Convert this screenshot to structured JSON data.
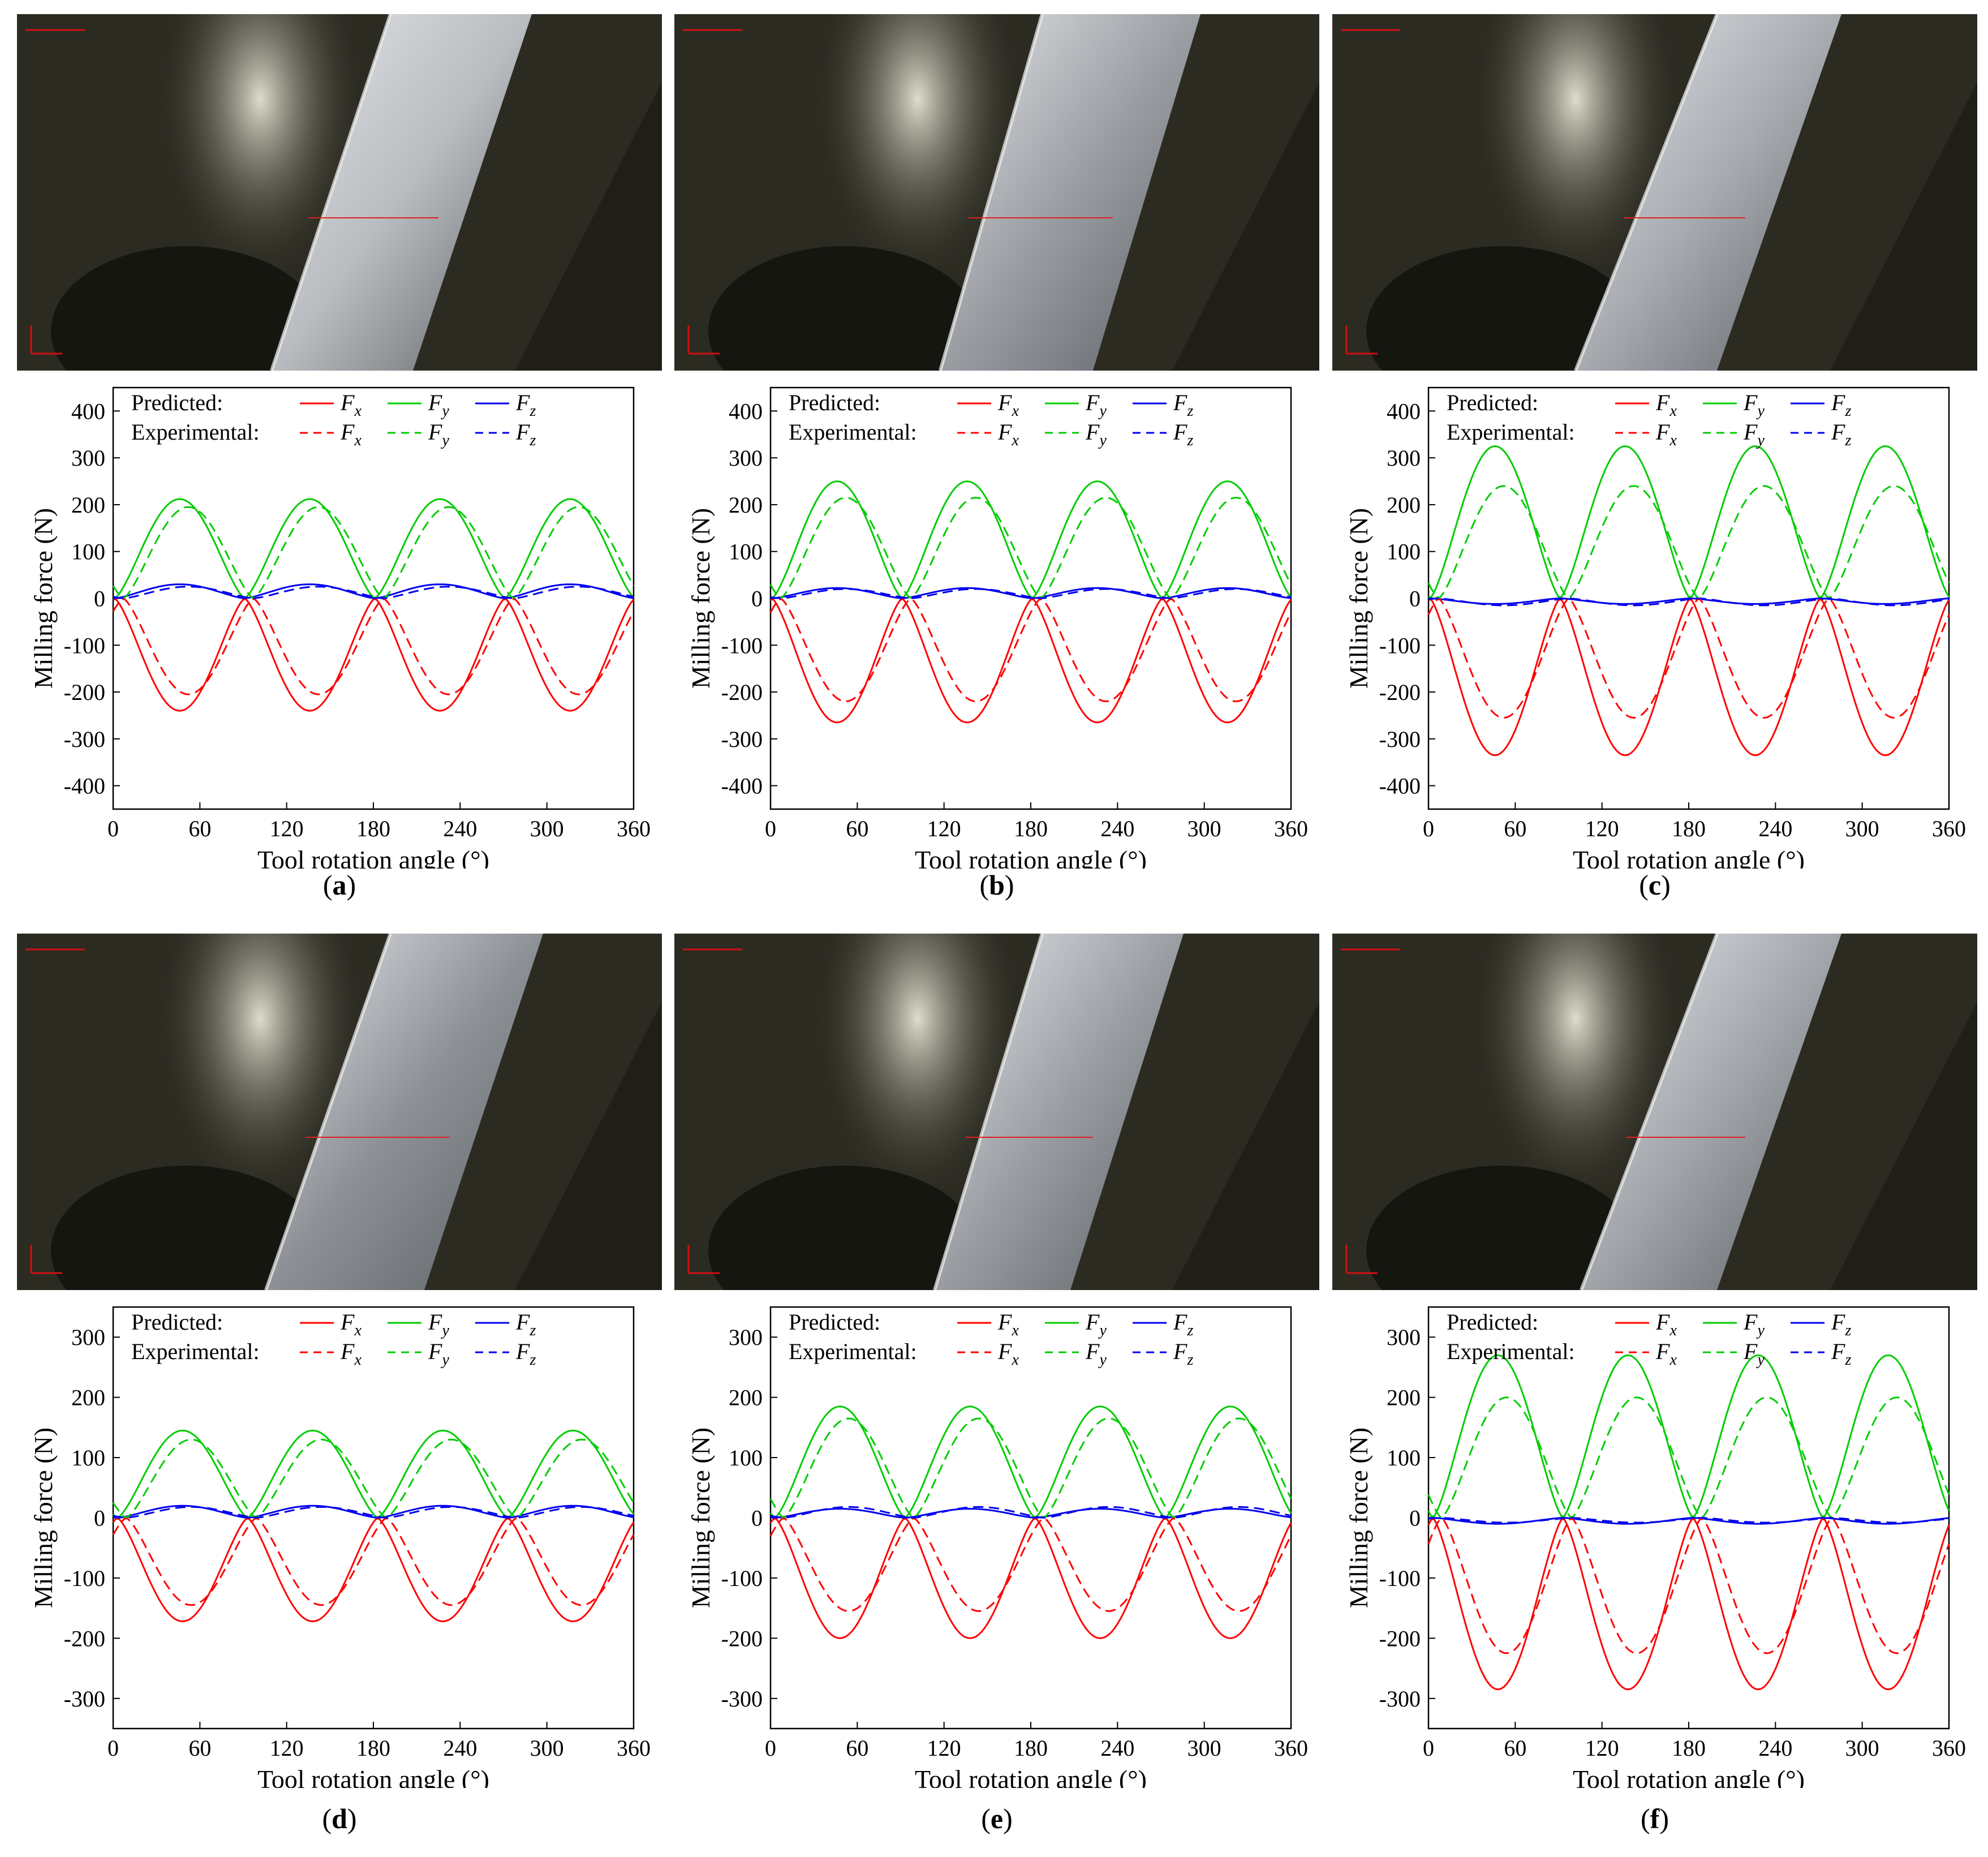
{
  "legend": {
    "predicted_label": "Predicted:",
    "experimental_label": "Experimental:",
    "symbol": "F",
    "subscripts": [
      "x",
      "y",
      "z"
    ]
  },
  "axis_labels": {
    "xlabel": "Tool rotation angle (°)",
    "ylabel": "Milling force (N)"
  },
  "colors": {
    "Fx": "#ff0000",
    "Fy": "#00cc00",
    "Fz": "#0000ee"
  },
  "panels": [
    {
      "letter": "a",
      "caption_open": "(",
      "caption_close": ")"
    },
    {
      "letter": "b",
      "caption_open": "(",
      "caption_close": ")"
    },
    {
      "letter": "c",
      "caption_open": "(",
      "caption_close": ")"
    },
    {
      "letter": "d",
      "caption_open": "(",
      "caption_close": ")"
    },
    {
      "letter": "e",
      "caption_open": "(",
      "caption_close": ")"
    },
    {
      "letter": "f",
      "caption_open": "(",
      "caption_close": ")"
    }
  ],
  "chart_data": [
    {
      "panel": "a",
      "type": "line",
      "xlim": [
        0,
        360
      ],
      "ylim": [
        -450,
        450
      ],
      "xticks": [
        0,
        60,
        120,
        180,
        240,
        300,
        360
      ],
      "yticks": [
        -400,
        -300,
        -200,
        -100,
        0,
        100,
        200,
        300,
        400
      ],
      "xlabel": "Tool rotation angle (°)",
      "ylabel": "Milling force (N)",
      "series": [
        {
          "name": "Fx",
          "kind": "predicted",
          "peak": -240,
          "peak_angle": 46
        },
        {
          "name": "Fy",
          "kind": "predicted",
          "peak": 212,
          "peak_angle": 46
        },
        {
          "name": "Fz",
          "kind": "predicted",
          "peak": 30,
          "peak_angle": 46
        },
        {
          "name": "Fx",
          "kind": "experimental",
          "peak": -205,
          "peak_angle": 52
        },
        {
          "name": "Fy",
          "kind": "experimental",
          "peak": 195,
          "peak_angle": 52
        },
        {
          "name": "Fz",
          "kind": "experimental",
          "peak": 25,
          "peak_angle": 52
        }
      ]
    },
    {
      "panel": "b",
      "type": "line",
      "xlim": [
        0,
        360
      ],
      "ylim": [
        -450,
        450
      ],
      "xticks": [
        0,
        60,
        120,
        180,
        240,
        300,
        360
      ],
      "yticks": [
        -400,
        -300,
        -200,
        -100,
        0,
        100,
        200,
        300,
        400
      ],
      "xlabel": "Tool rotation angle (°)",
      "ylabel": "Milling force (N)",
      "series": [
        {
          "name": "Fx",
          "kind": "predicted",
          "peak": -265,
          "peak_angle": 46
        },
        {
          "name": "Fy",
          "kind": "predicted",
          "peak": 250,
          "peak_angle": 46
        },
        {
          "name": "Fz",
          "kind": "predicted",
          "peak": 22,
          "peak_angle": 46
        },
        {
          "name": "Fx",
          "kind": "experimental",
          "peak": -220,
          "peak_angle": 52
        },
        {
          "name": "Fy",
          "kind": "experimental",
          "peak": 215,
          "peak_angle": 52
        },
        {
          "name": "Fz",
          "kind": "experimental",
          "peak": 20,
          "peak_angle": 52
        }
      ]
    },
    {
      "panel": "c",
      "type": "line",
      "xlim": [
        0,
        360
      ],
      "ylim": [
        -450,
        450
      ],
      "xticks": [
        0,
        60,
        120,
        180,
        240,
        300,
        360
      ],
      "yticks": [
        -400,
        -300,
        -200,
        -100,
        0,
        100,
        200,
        300,
        400
      ],
      "xlabel": "Tool rotation angle (°)",
      "ylabel": "Milling force (N)",
      "series": [
        {
          "name": "Fx",
          "kind": "predicted",
          "peak": -335,
          "peak_angle": 46
        },
        {
          "name": "Fy",
          "kind": "predicted",
          "peak": 325,
          "peak_angle": 46
        },
        {
          "name": "Fz",
          "kind": "predicted",
          "peak": -12,
          "peak_angle": 46
        },
        {
          "name": "Fx",
          "kind": "experimental",
          "peak": -255,
          "peak_angle": 52
        },
        {
          "name": "Fy",
          "kind": "experimental",
          "peak": 240,
          "peak_angle": 52
        },
        {
          "name": "Fz",
          "kind": "experimental",
          "peak": -15,
          "peak_angle": 52
        }
      ]
    },
    {
      "panel": "d",
      "type": "line",
      "xlim": [
        0,
        360
      ],
      "ylim": [
        -350,
        350
      ],
      "xticks": [
        0,
        60,
        120,
        180,
        240,
        300,
        360
      ],
      "yticks": [
        -300,
        -200,
        -100,
        0,
        100,
        200,
        300
      ],
      "xlabel": "Tool rotation angle (°)",
      "ylabel": "Milling force (N)",
      "series": [
        {
          "name": "Fx",
          "kind": "predicted",
          "peak": -172,
          "peak_angle": 48
        },
        {
          "name": "Fy",
          "kind": "predicted",
          "peak": 145,
          "peak_angle": 48
        },
        {
          "name": "Fz",
          "kind": "predicted",
          "peak": 20,
          "peak_angle": 48
        },
        {
          "name": "Fx",
          "kind": "experimental",
          "peak": -145,
          "peak_angle": 54
        },
        {
          "name": "Fy",
          "kind": "experimental",
          "peak": 130,
          "peak_angle": 54
        },
        {
          "name": "Fz",
          "kind": "experimental",
          "peak": 18,
          "peak_angle": 54
        }
      ]
    },
    {
      "panel": "e",
      "type": "line",
      "xlim": [
        0,
        360
      ],
      "ylim": [
        -350,
        350
      ],
      "xticks": [
        0,
        60,
        120,
        180,
        240,
        300,
        360
      ],
      "yticks": [
        -300,
        -200,
        -100,
        0,
        100,
        200,
        300
      ],
      "xlabel": "Tool rotation angle (°)",
      "ylabel": "Milling force (N)",
      "series": [
        {
          "name": "Fx",
          "kind": "predicted",
          "peak": -200,
          "peak_angle": 48
        },
        {
          "name": "Fy",
          "kind": "predicted",
          "peak": 185,
          "peak_angle": 48
        },
        {
          "name": "Fz",
          "kind": "predicted",
          "peak": 15,
          "peak_angle": 48
        },
        {
          "name": "Fx",
          "kind": "experimental",
          "peak": -155,
          "peak_angle": 54
        },
        {
          "name": "Fy",
          "kind": "experimental",
          "peak": 165,
          "peak_angle": 54
        },
        {
          "name": "Fz",
          "kind": "experimental",
          "peak": 18,
          "peak_angle": 54
        }
      ]
    },
    {
      "panel": "f",
      "type": "line",
      "xlim": [
        0,
        360
      ],
      "ylim": [
        -350,
        350
      ],
      "xticks": [
        0,
        60,
        120,
        180,
        240,
        300,
        360
      ],
      "yticks": [
        -300,
        -200,
        -100,
        0,
        100,
        200,
        300
      ],
      "xlabel": "Tool rotation angle (°)",
      "ylabel": "Milling force (N)",
      "series": [
        {
          "name": "Fx",
          "kind": "predicted",
          "peak": -285,
          "peak_angle": 48
        },
        {
          "name": "Fy",
          "kind": "predicted",
          "peak": 270,
          "peak_angle": 48
        },
        {
          "name": "Fz",
          "kind": "predicted",
          "peak": -10,
          "peak_angle": 48
        },
        {
          "name": "Fx",
          "kind": "experimental",
          "peak": -225,
          "peak_angle": 54
        },
        {
          "name": "Fy",
          "kind": "experimental",
          "peak": 200,
          "peak_angle": 54
        },
        {
          "name": "Fz",
          "kind": "experimental",
          "peak": -8,
          "peak_angle": 54
        }
      ]
    }
  ]
}
